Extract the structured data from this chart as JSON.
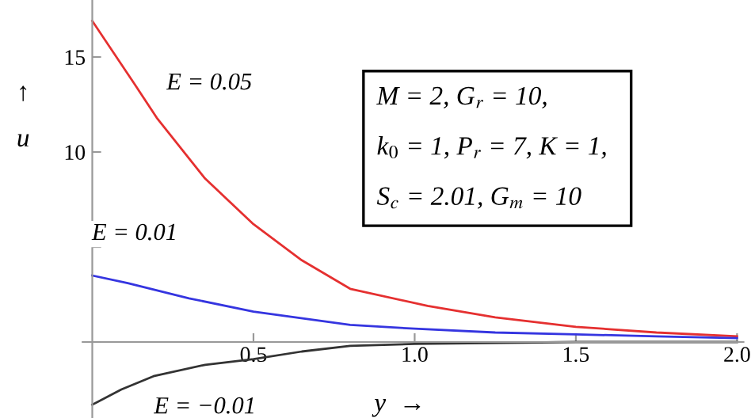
{
  "chart_data": {
    "type": "line",
    "xlabel": "y  →",
    "ylabel": "↑\nu",
    "xlim": [
      -0.03,
      2.02
    ],
    "ylim": [
      -4,
      18
    ],
    "xticks": [
      0.5,
      {
        "value": 1.0,
        "label": "1.0"
      },
      1.5,
      {
        "value": 2.0,
        "label": "2.0"
      }
    ],
    "yticks": [
      {
        "value": 0,
        "label": null
      },
      {
        "value": 5,
        "label": null
      },
      10,
      15
    ],
    "grid": false,
    "legend": false,
    "marker": "none",
    "line_style": "solid",
    "series": [
      {
        "color": "#e53030",
        "x": [
          0,
          0.13,
          0.2,
          0.35,
          0.5,
          0.65,
          0.8,
          1.04,
          1.25,
          1.5,
          1.75,
          2.0
        ],
        "values": [
          16.9,
          13.6,
          11.8,
          8.6,
          6.2,
          4.3,
          2.8,
          1.9,
          1.3,
          0.8,
          0.5,
          0.3
        ]
      },
      {
        "color": "#3535e0",
        "x": [
          0,
          0.11,
          0.3,
          0.5,
          0.8,
          1.0,
          1.25,
          1.5,
          1.75,
          2.0
        ],
        "values": [
          3.5,
          3.1,
          2.3,
          1.6,
          0.9,
          0.7,
          0.5,
          0.4,
          0.3,
          0.2
        ]
      },
      {
        "color": "#333333",
        "x": [
          0,
          0.09,
          0.19,
          0.35,
          0.5,
          0.65,
          0.8,
          1.0,
          1.5,
          2.0
        ],
        "values": [
          -3.3,
          -2.5,
          -1.8,
          -1.2,
          -0.9,
          -0.5,
          -0.2,
          -0.1,
          0,
          0
        ]
      }
    ],
    "annotations": [
      "E = 0.05",
      "E = 0.01",
      "E = −0.01",
      "M = 2, G$_{r}$ = 10,",
      "k$_{0}$ = 1, P$_{r}$ = 7, K = 1,",
      "S$_{c}$ = 2.01, G$_{m}$ = 10"
    ]
  }
}
